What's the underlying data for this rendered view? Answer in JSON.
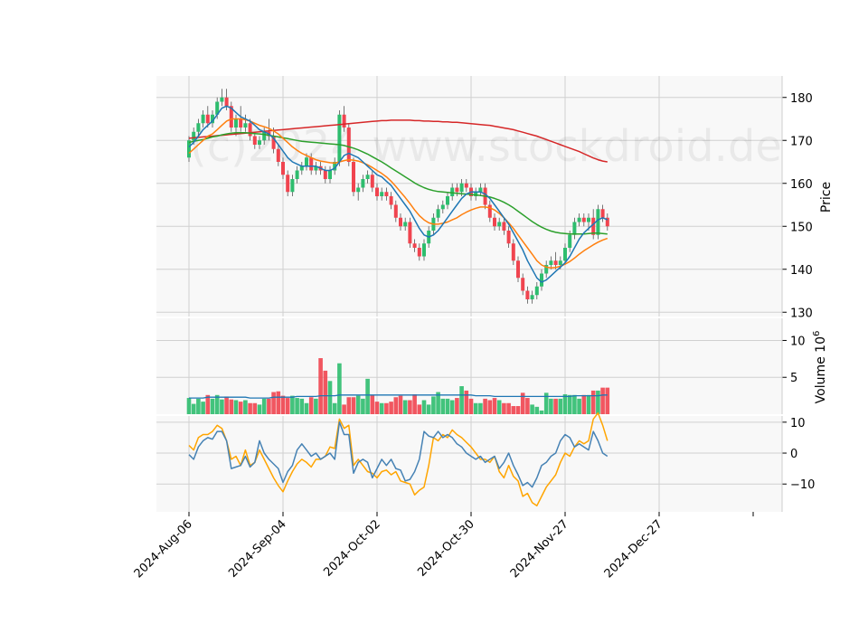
{
  "chart_data": {
    "type": "candlestick",
    "watermark": "(c)2024 www.stockdroid.de",
    "colors": {
      "up": "#2ebd6e",
      "down": "#f0444f",
      "ma_short": "#1f77b4",
      "ma_mid": "#ff7f0e",
      "ma_mid2": "#2ca02c",
      "ma_long": "#d62728",
      "volume_ma": "#1f77b4",
      "osc_1": "#4682b4",
      "osc_2": "#ffa500",
      "panel_bg": "#f8f8f8",
      "grid": "#d0d0d0"
    },
    "x_tick_labels": [
      "2024-Aug-06",
      "2024-Sep-04",
      "2024-Oct-02",
      "2024-Oct-30",
      "2024-Nov-27",
      "2024-Dec-27"
    ],
    "x_tick_index": [
      0,
      20,
      40,
      60,
      80,
      100
    ],
    "price_panel": {
      "ylabel": "Price",
      "yticks": [
        130,
        140,
        150,
        160,
        170,
        180
      ],
      "ylim": [
        129,
        185
      ],
      "ohlc": [
        [
          166,
          171,
          165,
          170
        ],
        [
          170,
          173,
          169,
          172
        ],
        [
          172,
          175,
          171,
          174
        ],
        [
          174,
          177,
          173,
          176
        ],
        [
          176,
          178,
          173,
          174
        ],
        [
          174,
          177,
          173,
          176
        ],
        [
          176,
          180,
          175,
          179
        ],
        [
          179,
          182,
          178,
          180
        ],
        [
          180,
          182,
          177,
          178
        ],
        [
          178,
          179,
          172,
          173
        ],
        [
          173,
          176,
          171,
          175
        ],
        [
          175,
          178,
          172,
          173
        ],
        [
          173,
          176,
          172,
          174
        ],
        [
          174,
          175,
          170,
          171
        ],
        [
          171,
          172,
          168,
          169
        ],
        [
          169,
          171,
          168,
          170
        ],
        [
          170,
          173,
          169,
          172
        ],
        [
          172,
          175,
          170,
          171
        ],
        [
          171,
          173,
          167,
          168
        ],
        [
          168,
          169,
          164,
          165
        ],
        [
          165,
          166,
          161,
          162
        ],
        [
          162,
          163,
          157,
          158
        ],
        [
          158,
          162,
          157,
          161
        ],
        [
          161,
          164,
          160,
          163
        ],
        [
          163,
          165,
          162,
          164
        ],
        [
          164,
          167,
          163,
          166
        ],
        [
          166,
          167,
          162,
          163
        ],
        [
          163,
          165,
          162,
          164
        ],
        [
          164,
          165,
          162,
          163
        ],
        [
          163,
          164,
          160,
          161
        ],
        [
          161,
          164,
          160,
          163
        ],
        [
          163,
          166,
          162,
          165
        ],
        [
          165,
          177,
          164,
          176
        ],
        [
          176,
          178,
          172,
          173
        ],
        [
          173,
          174,
          164,
          165
        ],
        [
          165,
          166,
          157,
          158
        ],
        [
          158,
          160,
          156,
          159
        ],
        [
          159,
          162,
          158,
          161
        ],
        [
          161,
          163,
          160,
          162
        ],
        [
          162,
          163,
          158,
          159
        ],
        [
          159,
          160,
          156,
          157
        ],
        [
          157,
          159,
          156,
          158
        ],
        [
          158,
          159,
          156,
          157
        ],
        [
          157,
          158,
          154,
          155
        ],
        [
          155,
          156,
          151,
          152
        ],
        [
          152,
          153,
          149,
          150
        ],
        [
          150,
          152,
          149,
          151
        ],
        [
          151,
          152,
          145,
          146
        ],
        [
          146,
          147,
          144,
          145
        ],
        [
          145,
          146,
          142,
          143
        ],
        [
          143,
          147,
          142,
          146
        ],
        [
          146,
          150,
          145,
          149
        ],
        [
          149,
          153,
          148,
          152
        ],
        [
          152,
          155,
          151,
          154
        ],
        [
          154,
          156,
          153,
          155
        ],
        [
          155,
          158,
          154,
          157
        ],
        [
          157,
          160,
          156,
          159
        ],
        [
          159,
          160,
          157,
          158
        ],
        [
          158,
          161,
          157,
          160
        ],
        [
          160,
          161,
          158,
          159
        ],
        [
          159,
          160,
          156,
          157
        ],
        [
          157,
          159,
          156,
          158
        ],
        [
          158,
          160,
          157,
          159
        ],
        [
          159,
          160,
          154,
          155
        ],
        [
          155,
          156,
          151,
          152
        ],
        [
          152,
          153,
          149,
          150
        ],
        [
          150,
          152,
          149,
          151
        ],
        [
          151,
          152,
          148,
          149
        ],
        [
          149,
          150,
          145,
          146
        ],
        [
          146,
          147,
          141,
          142
        ],
        [
          142,
          143,
          137,
          138
        ],
        [
          138,
          139,
          134,
          135
        ],
        [
          135,
          136,
          132,
          133
        ],
        [
          133,
          135,
          132,
          134
        ],
        [
          134,
          137,
          133,
          136
        ],
        [
          136,
          140,
          135,
          139
        ],
        [
          139,
          142,
          138,
          141
        ],
        [
          141,
          143,
          140,
          142
        ],
        [
          142,
          144,
          140,
          141
        ],
        [
          141,
          143,
          140,
          142
        ],
        [
          142,
          146,
          141,
          145
        ],
        [
          145,
          149,
          144,
          148
        ],
        [
          148,
          152,
          147,
          151
        ],
        [
          151,
          153,
          150,
          152
        ],
        [
          152,
          153,
          150,
          151
        ],
        [
          151,
          153,
          149,
          152
        ],
        [
          152,
          154,
          147,
          148
        ],
        [
          148,
          155,
          147,
          154
        ],
        [
          154,
          155,
          151,
          152
        ],
        [
          152,
          153,
          149,
          150
        ]
      ],
      "ma_short": [
        168.5,
        169.5,
        171,
        172.5,
        173.5,
        174.5,
        176,
        177.5,
        178,
        177.5,
        176.5,
        175.5,
        175,
        174.5,
        173.5,
        172.5,
        172,
        171.5,
        170.5,
        169,
        167.5,
        166,
        165,
        164.5,
        164,
        164,
        164,
        164,
        163.5,
        163,
        163,
        163.5,
        165,
        166.5,
        167,
        166.5,
        166,
        165,
        164,
        163,
        162,
        161.5,
        160.5,
        159.5,
        158,
        156.5,
        155,
        153.5,
        151.5,
        149.5,
        148,
        147.5,
        148,
        149,
        150.5,
        152,
        153.5,
        155,
        156.5,
        157.5,
        158,
        158,
        158,
        157.5,
        156.5,
        155,
        153.5,
        152,
        150.5,
        148.5,
        146.5,
        144.5,
        142,
        140,
        138,
        137,
        137.5,
        138.5,
        139.5,
        140.5,
        141.5,
        143,
        145,
        147,
        148.5,
        149.5,
        150.5,
        151.5,
        152,
        151.5
      ],
      "ma_mid": [
        167,
        168,
        169,
        170,
        171,
        171.5,
        172.5,
        173.5,
        174.5,
        175,
        175,
        175,
        174.8,
        174.5,
        174,
        173.5,
        173.2,
        172.8,
        172.2,
        171.5,
        170.5,
        169.5,
        168.5,
        167.7,
        167,
        166.5,
        166,
        165.5,
        165.2,
        165,
        164.8,
        164.7,
        165,
        165.3,
        165.5,
        165.4,
        165.2,
        164.8,
        164.3,
        163.7,
        163,
        162.3,
        161.5,
        160.5,
        159.3,
        158,
        156.7,
        155.3,
        153.8,
        152.5,
        151.5,
        150.8,
        150.5,
        150.5,
        150.7,
        151,
        151.5,
        152,
        152.7,
        153.3,
        153.8,
        154.2,
        154.5,
        154.5,
        154.3,
        153.8,
        153,
        152,
        150.8,
        149.5,
        148,
        146.5,
        145,
        143.5,
        142,
        141,
        140.5,
        140.3,
        140.4,
        140.7,
        141.2,
        141.8,
        142.6,
        143.5,
        144.3,
        145,
        145.7,
        146.3,
        146.8,
        147.2
      ],
      "ma_mid2": [
        169.5,
        169.8,
        170,
        170.2,
        170.5,
        170.8,
        171,
        171.3,
        171.5,
        171.7,
        171.8,
        171.8,
        171.8,
        171.7,
        171.6,
        171.5,
        171.4,
        171.2,
        171,
        170.8,
        170.6,
        170.4,
        170.2,
        170,
        169.8,
        169.7,
        169.6,
        169.5,
        169.4,
        169.3,
        169.2,
        169.1,
        169,
        168.8,
        168.5,
        168.2,
        167.8,
        167.3,
        166.8,
        166.2,
        165.6,
        165,
        164.3,
        163.6,
        162.9,
        162.2,
        161.5,
        160.8,
        160.1,
        159.5,
        159,
        158.6,
        158.3,
        158.1,
        158,
        157.9,
        157.8,
        157.7,
        157.6,
        157.5,
        157.4,
        157.3,
        157.2,
        157,
        156.8,
        156.5,
        156.1,
        155.6,
        155,
        154.3,
        153.5,
        152.7,
        151.9,
        151.1,
        150.4,
        149.8,
        149.3,
        148.9,
        148.6,
        148.4,
        148.3,
        148.2,
        148.2,
        148.2,
        148.2,
        148.3,
        148.4,
        148.4,
        148.3,
        148.2
      ],
      "ma_long": [
        170.5,
        170.6,
        170.7,
        170.8,
        170.9,
        171,
        171.1,
        171.2,
        171.3,
        171.4,
        171.5,
        171.6,
        171.7,
        171.8,
        171.9,
        172,
        172.1,
        172.2,
        172.3,
        172.4,
        172.5,
        172.6,
        172.7,
        172.8,
        172.9,
        173,
        173.1,
        173.2,
        173.3,
        173.4,
        173.5,
        173.6,
        173.7,
        173.8,
        173.9,
        174,
        174.1,
        174.2,
        174.3,
        174.4,
        174.5,
        174.6,
        174.6,
        174.7,
        174.7,
        174.7,
        174.7,
        174.7,
        174.6,
        174.6,
        174.5,
        174.5,
        174.4,
        174.4,
        174.3,
        174.3,
        174.2,
        174.2,
        174.1,
        174,
        173.9,
        173.8,
        173.7,
        173.6,
        173.5,
        173.3,
        173.1,
        172.9,
        172.7,
        172.5,
        172.2,
        171.9,
        171.6,
        171.3,
        171,
        170.6,
        170.2,
        169.8,
        169.4,
        169,
        168.6,
        168.2,
        167.8,
        167.4,
        166.9,
        166.4,
        165.9,
        165.5,
        165.2,
        165
      ]
    },
    "volume_panel": {
      "ylabel": "Volume  10^6",
      "yticks": [
        5,
        10
      ],
      "ylim": [
        0,
        13
      ],
      "values": [
        2.2,
        1.4,
        2.1,
        1.7,
        2.6,
        2.1,
        2.6,
        2.0,
        2.4,
        2.0,
        1.9,
        1.7,
        1.9,
        1.5,
        1.5,
        1.3,
        2.1,
        2.1,
        3.0,
        3.1,
        2.5,
        2.2,
        2.5,
        2.2,
        2.1,
        1.5,
        2.3,
        2.1,
        7.6,
        5.9,
        4.5,
        1.5,
        6.9,
        1.3,
        2.3,
        2.3,
        2.5,
        2.1,
        4.8,
        2.6,
        1.7,
        1.5,
        1.5,
        1.7,
        2.3,
        2.5,
        1.9,
        1.9,
        2.7,
        1.3,
        1.9,
        1.3,
        2.4,
        3.0,
        2.1,
        2.1,
        1.9,
        2.2,
        3.8,
        3.2,
        2.1,
        1.5,
        1.5,
        2.1,
        1.9,
        2.2,
        1.9,
        1.5,
        1.5,
        1.1,
        1.1,
        2.9,
        2.2,
        1.3,
        1.0,
        0.5,
        2.9,
        2.1,
        2.1,
        2.1,
        2.7,
        2.6,
        2.6,
        2.1,
        2.6,
        2.6,
        3.2,
        3.2,
        3.6,
        3.6
      ],
      "volume_ma": [
        2.2,
        2.2,
        2.2,
        2.2,
        2.3,
        2.3,
        2.3,
        2.3,
        2.3,
        2.3,
        2.3,
        2.3,
        2.3,
        2.2,
        2.2,
        2.2,
        2.2,
        2.2,
        2.3,
        2.3,
        2.3,
        2.3,
        2.3,
        2.4,
        2.4,
        2.4,
        2.4,
        2.4,
        2.5,
        2.5,
        2.5,
        2.5,
        2.6,
        2.6,
        2.6,
        2.6,
        2.6,
        2.6,
        2.6,
        2.6,
        2.6,
        2.6,
        2.6,
        2.6,
        2.6,
        2.6,
        2.6,
        2.6,
        2.6,
        2.6,
        2.6,
        2.6,
        2.6,
        2.6,
        2.6,
        2.6,
        2.6,
        2.6,
        2.6,
        2.6,
        2.6,
        2.5,
        2.5,
        2.5,
        2.5,
        2.4,
        2.4,
        2.4,
        2.4,
        2.4,
        2.4,
        2.4,
        2.4,
        2.4,
        2.4,
        2.4,
        2.4,
        2.4,
        2.4,
        2.4,
        2.4,
        2.4,
        2.5,
        2.5,
        2.5,
        2.5,
        2.5,
        2.5,
        2.6,
        2.6
      ]
    },
    "oscillator_panel": {
      "yticks": [
        -10,
        0,
        10
      ],
      "ylim": [
        -19,
        12
      ],
      "line1": [
        -0.5,
        -2,
        2,
        4,
        5,
        4.5,
        7,
        7,
        4,
        -5,
        -4.5,
        -4,
        -1,
        -4.5,
        -3,
        4,
        0,
        -2,
        -3.5,
        -5,
        -9.5,
        -6,
        -4,
        1,
        3,
        1,
        -1,
        0,
        -2,
        -1,
        0,
        -2,
        10,
        6,
        6,
        -6.5,
        -3,
        -2,
        -3,
        -8,
        -5,
        -2,
        -4,
        -2,
        -5,
        -5.5,
        -9,
        -8.5,
        -6,
        -2,
        7,
        5.5,
        5,
        7,
        5,
        6,
        5,
        3,
        2,
        0,
        -1,
        -2,
        -1,
        -3,
        -2,
        -1,
        -5,
        -3,
        0,
        -4,
        -7,
        -10.5,
        -9.5,
        -11,
        -8,
        -4,
        -3,
        -1,
        0,
        4,
        6,
        5,
        2,
        3,
        2,
        1,
        7,
        4,
        0,
        -1
      ],
      "line2": [
        2.5,
        1,
        5,
        6,
        6,
        7,
        9,
        8,
        4,
        -2,
        -1,
        -4,
        1,
        -4,
        -3,
        1,
        -2,
        -5,
        -8,
        -10.5,
        -12.5,
        -9,
        -6,
        -3.5,
        -2,
        -3,
        -4.5,
        -2,
        -2,
        -1,
        2,
        1.5,
        11,
        8,
        9,
        -4,
        -2,
        -4,
        -6,
        -6.5,
        -8,
        -6,
        -5.5,
        -7,
        -6,
        -9,
        -9.5,
        -10,
        -13.5,
        -12,
        -11,
        -4,
        5,
        4,
        6,
        5,
        7.5,
        6,
        5,
        3.5,
        2,
        0,
        -2,
        -2,
        -3,
        -1,
        -6,
        -8,
        -4,
        -7.5,
        -9,
        -14,
        -13,
        -16,
        -17,
        -14,
        -11,
        -9,
        -7,
        -3,
        0,
        -1,
        2,
        4,
        3,
        4,
        11,
        13,
        9,
        4
      ]
    }
  }
}
